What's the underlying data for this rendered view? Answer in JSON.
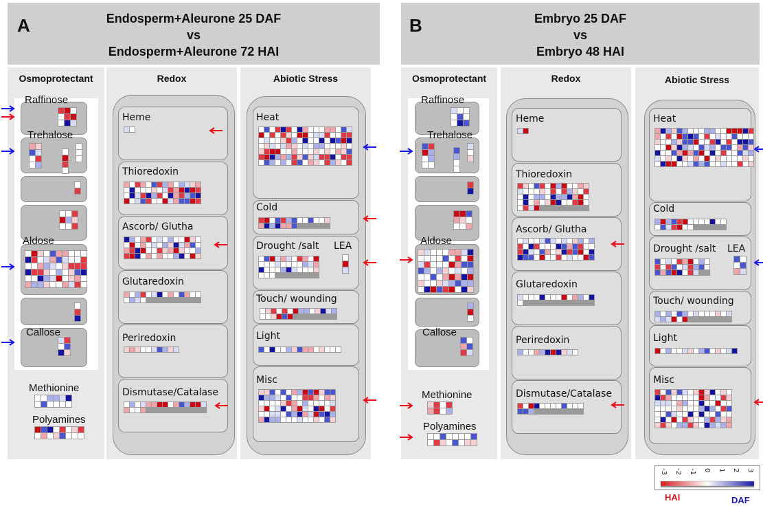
{
  "panel_a": {
    "letter": "A",
    "title_lines": [
      "Endosperm+Aleurone 25 DAF",
      "vs",
      "Endosperm+Aleurone 72 HAI"
    ],
    "col_osmo": "Osmoprotectant",
    "col_redox": "Redox",
    "col_abiotic": "Abiotic Stress",
    "osmo_labels": {
      "raffinose": "Raffinose",
      "trehalose": "Trehalose",
      "aldose": "Aldose",
      "callose": "Callose",
      "methionine": "Methionine",
      "polyamines": "Polyamines"
    },
    "redox_labels": [
      "Heme",
      "Thioredoxin",
      "Ascorb/ Glutha",
      "Glutaredoxin",
      "Periredoxin",
      "Dismutase/Catalase"
    ],
    "abiotic_labels": {
      "heat": "Heat",
      "cold": "Cold",
      "drought": "Drought /salt",
      "lea": "LEA",
      "touch": "Touch/ wounding",
      "light": "Light",
      "misc": "Misc"
    }
  },
  "panel_b": {
    "letter": "B",
    "title_lines": [
      "Embryo 25 DAF",
      "vs",
      "Embryo 48 HAI"
    ],
    "col_osmo": "Osmoprotectant",
    "col_redox": "Redox",
    "col_abiotic": "Abiotic Stress",
    "osmo_labels": {
      "raffinose": "Raffinose",
      "trehalose": "Trehalose",
      "aldose": "Aldose",
      "callose": "Callose",
      "methionine": "Methionine",
      "polyamines": "Polyamines"
    },
    "redox_labels": [
      "Heme",
      "Thioredoxin",
      "Ascorb/ Glutha",
      "Glutaredoxin",
      "Periredoxin",
      "Dismutase/Catalase"
    ],
    "abiotic_labels": {
      "heat": "Heat",
      "cold": "Cold",
      "drought": "Drought /salt",
      "lea": "LEA",
      "touch": "Touch/ wounding",
      "light": "Light",
      "misc": "Misc"
    }
  },
  "legend": {
    "ticks": [
      "-3",
      "-2",
      "-1",
      "0",
      "1",
      "2",
      "3"
    ],
    "left_label": "HAI",
    "right_label": "DAF",
    "colors": {
      "low": "#d7191c",
      "mid": "#ffffff",
      "high": "#1a1aa6"
    }
  },
  "arrow_colors": {
    "red": "#e8101a",
    "blue": "#1a1ae0"
  }
}
